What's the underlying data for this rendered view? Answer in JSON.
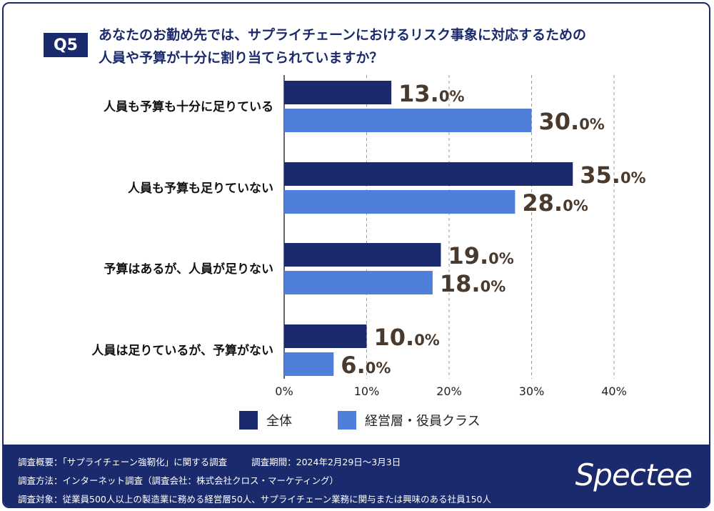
{
  "question": {
    "badge": "Q5",
    "title_line1": "あなたのお勤め先では、サプライチェーンにおけるリスク事象に対応するための",
    "title_line2": "人員や予算が十分に割り当てられていますか？"
  },
  "chart_data": {
    "type": "bar",
    "orientation": "horizontal",
    "categories": [
      "人員も予算も十分に足りている",
      "人員も予算も足りていない",
      "予算はあるが、人員が足りない",
      "人員は足りているが、予算がない"
    ],
    "series": [
      {
        "name": "全体",
        "color": "#1a2a6c",
        "values": [
          13.0,
          35.0,
          19.0,
          10.0
        ]
      },
      {
        "name": "経営層・役員クラス",
        "color": "#4f7fd9",
        "values": [
          30.0,
          28.0,
          18.0,
          6.0
        ]
      }
    ],
    "xlim": [
      0,
      40
    ],
    "xticks": [
      "0%",
      "10%",
      "20%",
      "30%",
      "40%"
    ],
    "grid": "vertical-dashed",
    "legend_position": "bottom",
    "value_suffix": "%"
  },
  "footer": {
    "overview_label": "調査概要：「サプライチェーン強靭化」に関する調査",
    "period_label": "調査期間：2024年2月29日～3月3日",
    "method_label": "調査方法：インターネット調査（調査会社：株式会社クロス・マーケティング）",
    "target_label": "調査対象：従業員500人以上の製造業に務める経営層50人、サプライチェーン業務に関与または興味のある社員150人",
    "logo": "Spectee"
  }
}
